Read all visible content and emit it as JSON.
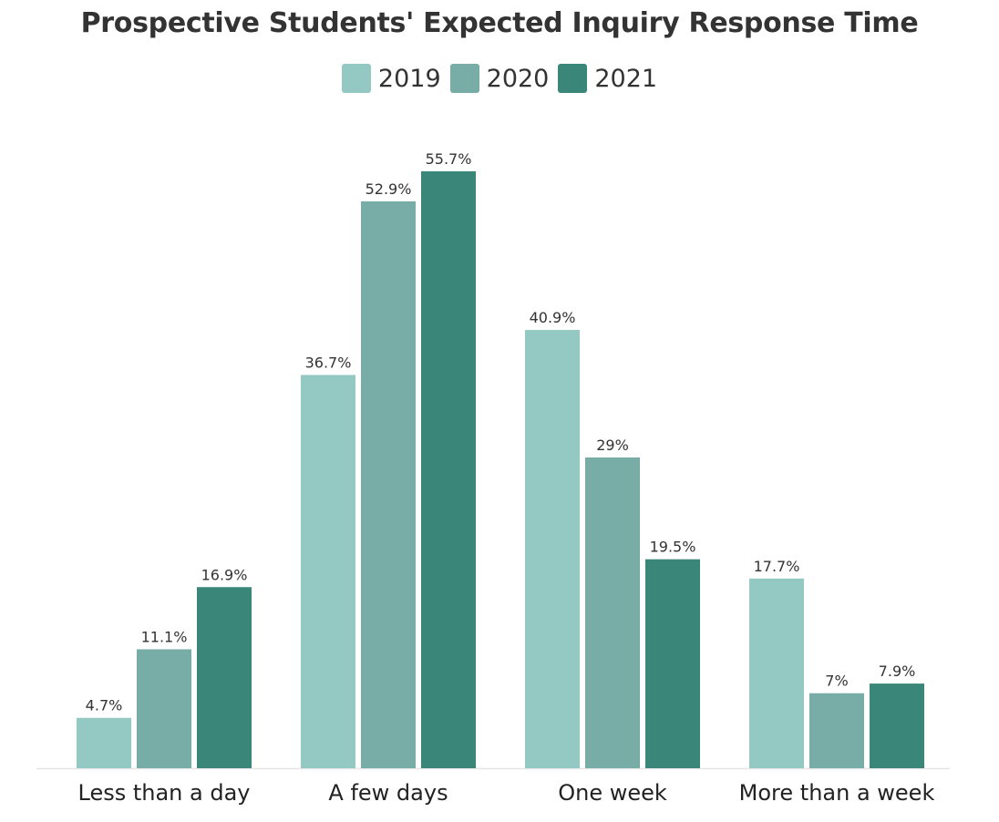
{
  "chart_data": {
    "type": "bar",
    "title": "Prospective Students' Expected Inquiry Response Time",
    "categories": [
      "Less than a day",
      "A few days",
      "One week",
      "More than a week"
    ],
    "series": [
      {
        "name": "2019",
        "color": "#94c9c3",
        "values": [
          4.7,
          36.7,
          40.9,
          17.7
        ],
        "labels": [
          "4.7%",
          "36.7%",
          "40.9%",
          "17.7%"
        ]
      },
      {
        "name": "2020",
        "color": "#78aca6",
        "values": [
          11.1,
          52.9,
          29,
          7
        ],
        "labels": [
          "11.1%",
          "52.9%",
          "29%",
          "7%"
        ]
      },
      {
        "name": "2021",
        "color": "#3a877a",
        "values": [
          16.9,
          55.7,
          19.5,
          7.9
        ],
        "labels": [
          "16.9%",
          "55.7%",
          "19.5%",
          "7.9%"
        ]
      }
    ],
    "ylim": [
      0,
      55.7
    ],
    "xlabel": "",
    "ylabel": "",
    "grid": false,
    "legend": "top-center"
  }
}
